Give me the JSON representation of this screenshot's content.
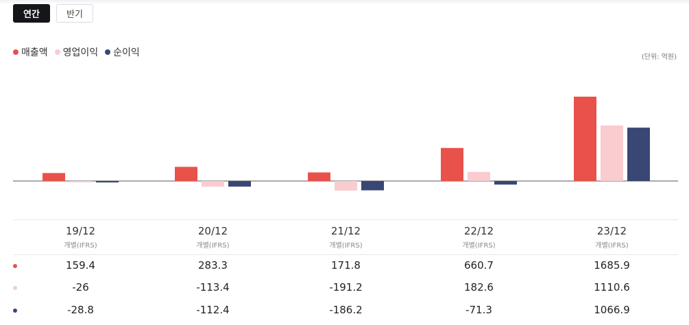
{
  "tabs": [
    {
      "label": "연간",
      "active": true
    },
    {
      "label": "반기",
      "active": false
    }
  ],
  "legend": [
    {
      "label": "매출액",
      "color": "#e8524a"
    },
    {
      "label": "영업이익",
      "color": "#f9ccd0"
    },
    {
      "label": "순이익",
      "color": "#394774"
    }
  ],
  "unit_label": "(단위: 억원)",
  "chart_data": {
    "type": "bar",
    "categories": [
      "19/12",
      "20/12",
      "21/12",
      "22/12",
      "23/12"
    ],
    "sublabels": [
      "개별(IFRS)",
      "개별(IFRS)",
      "개별(IFRS)",
      "개별(IFRS)",
      "개별(IFRS)"
    ],
    "series": [
      {
        "name": "매출액",
        "color": "#e8524a",
        "values": [
          159.4,
          283.3,
          171.8,
          660.7,
          1685.9
        ]
      },
      {
        "name": "영업이익",
        "color": "#f9ccd0",
        "values": [
          -26,
          -113.4,
          -191.2,
          182.6,
          1110.6
        ]
      },
      {
        "name": "순이익",
        "color": "#394774",
        "values": [
          -28.8,
          -112.4,
          -186.2,
          -71.3,
          1066.9
        ]
      }
    ],
    "ylim": [
      -230,
      1850
    ],
    "grid": false,
    "legend_position": "top-left"
  },
  "table": {
    "rows": [
      {
        "values": [
          "159.4",
          "283.3",
          "171.8",
          "660.7",
          "1685.9"
        ]
      },
      {
        "values": [
          "-26",
          "-113.4",
          "-191.2",
          "182.6",
          "1110.6"
        ]
      },
      {
        "values": [
          "-28.8",
          "-112.4",
          "-186.2",
          "-71.3",
          "1066.9"
        ]
      }
    ]
  }
}
